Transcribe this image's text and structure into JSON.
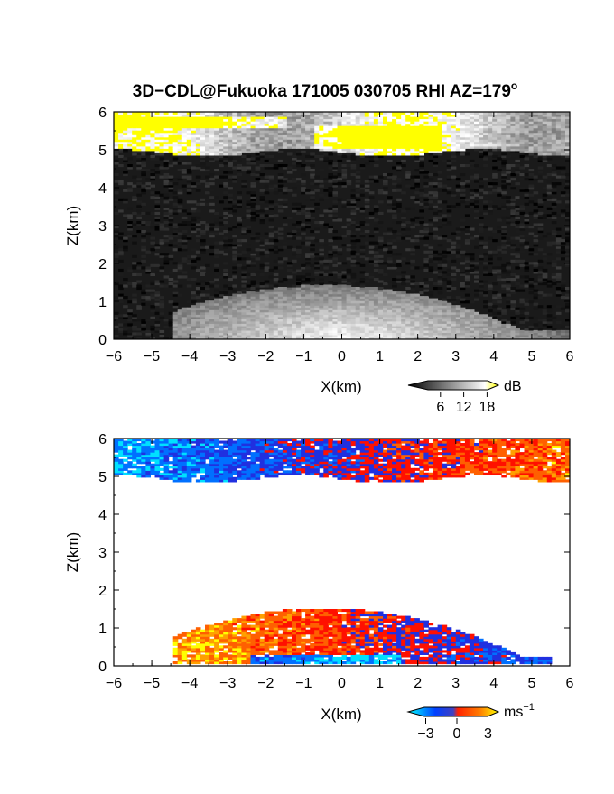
{
  "title": "3D−CDL@Fukuoka 171005 030705 RHI AZ=179",
  "title_superscript": "o",
  "chart_data": [
    {
      "type": "heatmap",
      "panel": "top",
      "quantity_unit": "dB",
      "xlabel": "X(km)",
      "ylabel": "Z(km)",
      "xlim": [
        -6,
        6
      ],
      "ylim": [
        0,
        6
      ],
      "x_ticks": [
        "−6",
        "−5",
        "−4",
        "−3",
        "−2",
        "−1",
        "0",
        "1",
        "2",
        "3",
        "4",
        "5",
        "6"
      ],
      "y_ticks": [
        "0",
        "1",
        "2",
        "3",
        "4",
        "5",
        "6"
      ],
      "colorbar": {
        "unit": "dB",
        "tick_labels": [
          "6",
          "12",
          "18"
        ],
        "tick_values": [
          6,
          12,
          18
        ],
        "range": [
          0,
          20
        ],
        "colors": [
          "#000000",
          "#ffffff",
          "#ffff00"
        ]
      },
      "features": [
        {
          "kind": "cloud-layer",
          "z_range_km": [
            4.9,
            6.0
          ],
          "x_range_km": [
            -6,
            6
          ]
        },
        {
          "kind": "near-ground-return",
          "z_range_km": [
            0,
            1.2
          ],
          "x_range_km": [
            -4.5,
            6
          ]
        }
      ]
    },
    {
      "type": "heatmap",
      "panel": "bottom",
      "quantity_unit": "ms⁻¹",
      "xlabel": "X(km)",
      "ylabel": "Z(km)",
      "xlim": [
        -6,
        6
      ],
      "ylim": [
        0,
        6
      ],
      "x_ticks": [
        "−6",
        "−5",
        "−4",
        "−3",
        "−2",
        "−1",
        "0",
        "1",
        "2",
        "3",
        "4",
        "5",
        "6"
      ],
      "y_ticks": [
        "0",
        "1",
        "2",
        "3",
        "4",
        "5",
        "6"
      ],
      "colorbar": {
        "unit": "ms",
        "unit_superscript": "−1",
        "tick_labels": [
          "−3",
          "0",
          "3"
        ],
        "tick_values": [
          -3,
          0,
          3
        ],
        "range": [
          -4,
          4
        ],
        "colors": [
          "#00ffff",
          "#0000ff",
          "#ff0000",
          "#ffff00"
        ]
      },
      "features": [
        {
          "kind": "cloud-layer",
          "z_range_km": [
            4.9,
            6.0
          ],
          "x_range_km": [
            -6,
            6
          ],
          "velocity_west_ms": -2.5,
          "velocity_east_ms": 2.0
        },
        {
          "kind": "boundary-layer",
          "z_range_km": [
            0,
            1.3
          ],
          "x_range_km": [
            -4.5,
            5.5
          ],
          "velocity_west_ms": 3.0,
          "velocity_east_ms": -1.5
        }
      ]
    }
  ]
}
